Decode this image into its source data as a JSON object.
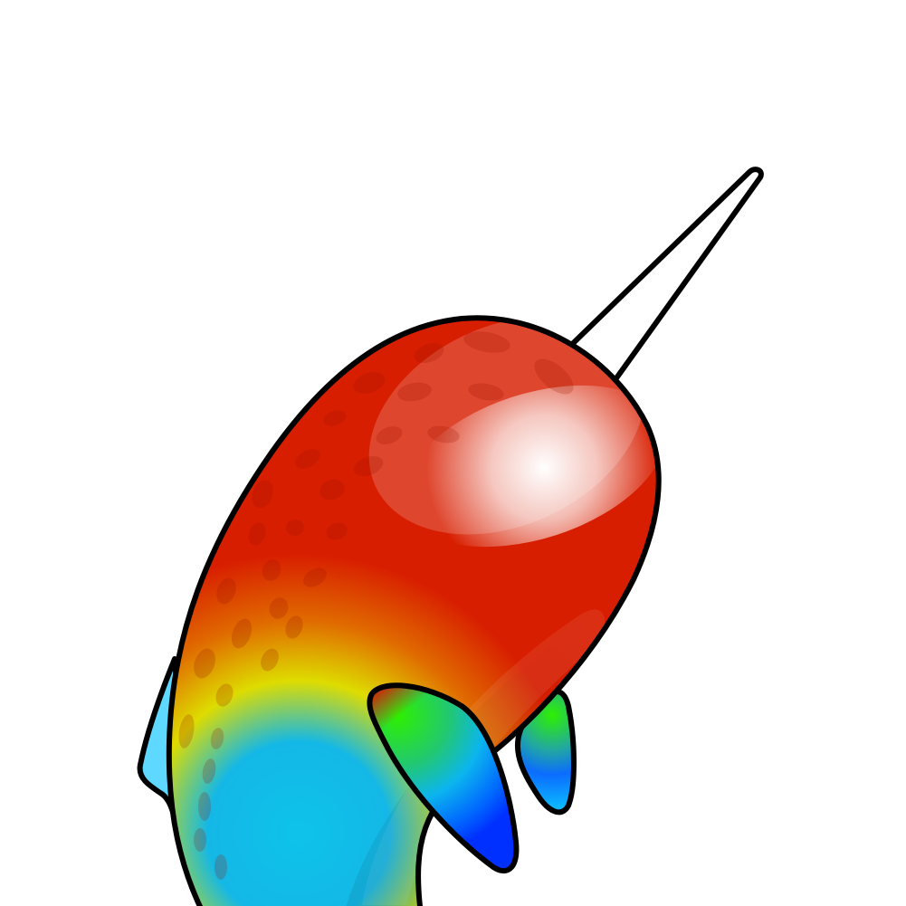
{
  "illustration": {
    "subject": "narwhal",
    "colors": {
      "background": "#ffffff",
      "outline": "#000000",
      "tusk": "#ffffff",
      "body_primary": "#d81e00",
      "body_orange": "#e06a00",
      "body_yellow": "#dedc00",
      "body_cyan": "#0dc3ea",
      "tail_fin": "#5fd8ff",
      "fin_green": "#2ef000",
      "fin_blue": "#0037ff",
      "highlight": "#ffffff",
      "spots": "#9a1400"
    }
  }
}
